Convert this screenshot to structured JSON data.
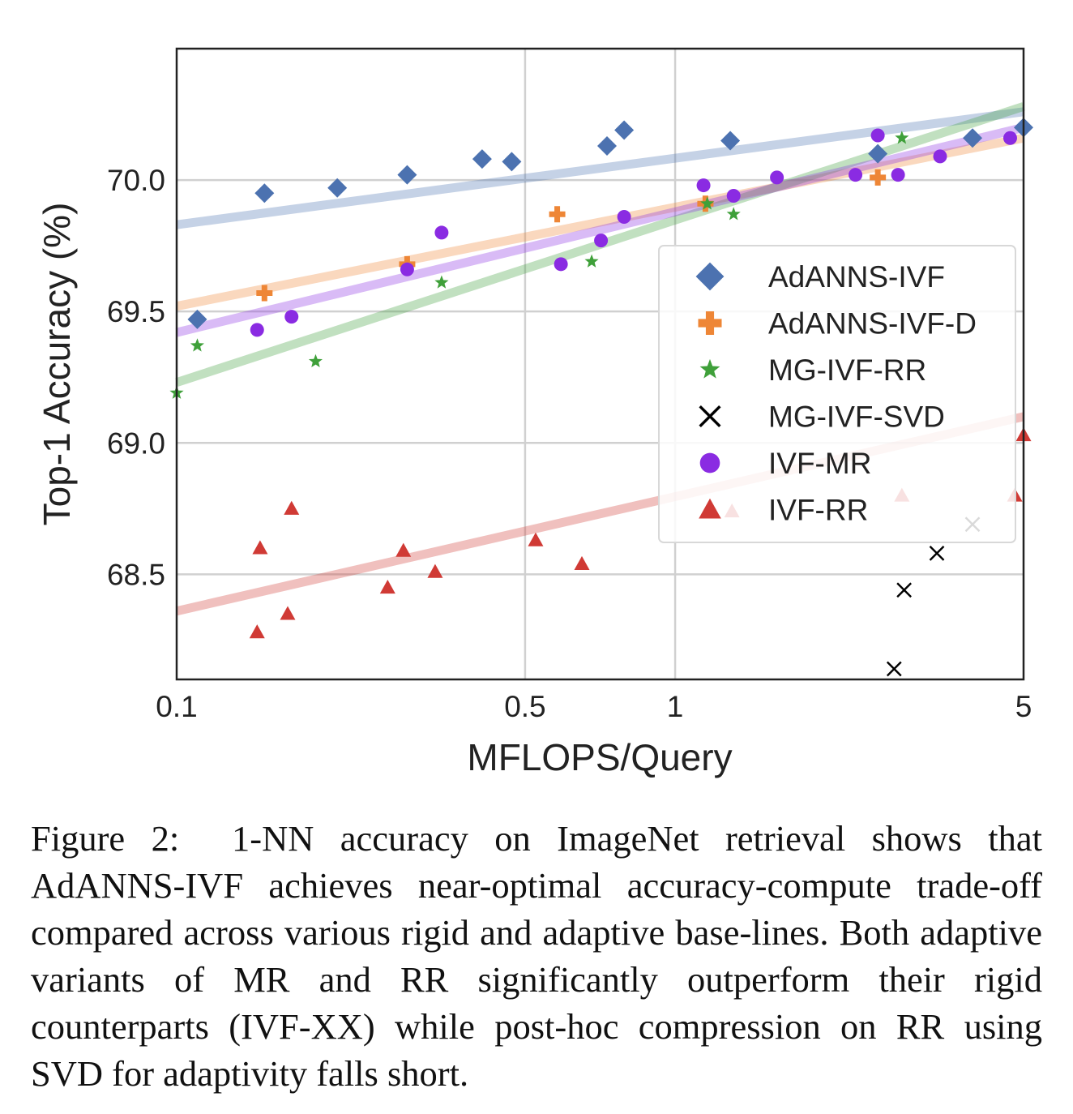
{
  "chart_data": {
    "type": "scatter",
    "xlabel": "MFLOPS/Query",
    "ylabel": "Top-1 Accuracy (%)",
    "xscale": "log",
    "xlim": [
      0.1,
      5
    ],
    "ylim": [
      68.1,
      70.5
    ],
    "xticks": [
      0.1,
      0.5,
      1,
      5
    ],
    "xtick_labels": [
      "0.1",
      "0.5",
      "1",
      "5"
    ],
    "yticks": [
      68.5,
      69.0,
      69.5,
      70.0
    ],
    "ytick_labels": [
      "68.5",
      "69.0",
      "69.5",
      "70.0"
    ],
    "grid": true,
    "legend_position": "center-right",
    "series": [
      {
        "name": "AdANNS-IVF",
        "marker": "diamond",
        "color": "#4c72b0",
        "points": [
          [
            0.11,
            69.47
          ],
          [
            0.15,
            69.95
          ],
          [
            0.21,
            69.97
          ],
          [
            0.29,
            70.02
          ],
          [
            0.41,
            70.08
          ],
          [
            0.47,
            70.07
          ],
          [
            0.73,
            70.13
          ],
          [
            0.79,
            70.19
          ],
          [
            1.29,
            70.15
          ],
          [
            2.55,
            70.1
          ],
          [
            3.95,
            70.16
          ],
          [
            5.0,
            70.2
          ]
        ],
        "trend": [
          [
            0.1,
            69.83
          ],
          [
            5,
            70.26
          ]
        ]
      },
      {
        "name": "AdANNS-IVF-D",
        "marker": "plus",
        "color": "#ee8636",
        "points": [
          [
            0.15,
            69.57
          ],
          [
            0.29,
            69.68
          ],
          [
            0.58,
            69.87
          ],
          [
            1.15,
            69.91
          ],
          [
            2.55,
            70.01
          ]
        ],
        "trend": [
          [
            0.1,
            69.52
          ],
          [
            5,
            70.16
          ]
        ]
      },
      {
        "name": "MG-IVF-RR",
        "marker": "star",
        "color": "#3fa03a",
        "points": [
          [
            0.1,
            69.19
          ],
          [
            0.11,
            69.37
          ],
          [
            0.19,
            69.31
          ],
          [
            0.34,
            69.61
          ],
          [
            0.68,
            69.69
          ],
          [
            1.16,
            69.91
          ],
          [
            1.31,
            69.87
          ],
          [
            2.85,
            70.16
          ]
        ],
        "trend": [
          [
            0.1,
            69.23
          ],
          [
            5,
            70.28
          ]
        ]
      },
      {
        "name": "MG-IVF-SVD",
        "marker": "x",
        "color": "#000000",
        "points": [
          [
            2.75,
            68.14
          ],
          [
            2.88,
            68.44
          ],
          [
            3.35,
            68.58
          ],
          [
            3.95,
            68.69
          ]
        ],
        "trend": []
      },
      {
        "name": "IVF-MR",
        "marker": "circle",
        "color": "#8a2be2",
        "points": [
          [
            0.145,
            69.43
          ],
          [
            0.17,
            69.48
          ],
          [
            0.29,
            69.66
          ],
          [
            0.34,
            69.8
          ],
          [
            0.59,
            69.68
          ],
          [
            0.71,
            69.77
          ],
          [
            0.79,
            69.86
          ],
          [
            1.14,
            69.98
          ],
          [
            1.31,
            69.94
          ],
          [
            1.6,
            70.01
          ],
          [
            2.3,
            70.02
          ],
          [
            2.55,
            70.17
          ],
          [
            2.8,
            70.02
          ],
          [
            3.4,
            70.09
          ],
          [
            4.7,
            70.16
          ]
        ],
        "trend": [
          [
            0.1,
            69.42
          ],
          [
            5,
            70.2
          ]
        ]
      },
      {
        "name": "IVF-RR",
        "marker": "triangle",
        "color": "#d03a35",
        "points": [
          [
            0.145,
            68.28
          ],
          [
            0.147,
            68.6
          ],
          [
            0.167,
            68.35
          ],
          [
            0.17,
            68.75
          ],
          [
            0.265,
            68.45
          ],
          [
            0.285,
            68.59
          ],
          [
            0.33,
            68.51
          ],
          [
            0.525,
            68.63
          ],
          [
            0.65,
            68.54
          ],
          [
            1.3,
            68.74
          ],
          [
            2.85,
            68.8
          ],
          [
            4.8,
            68.8
          ],
          [
            5.0,
            69.03
          ]
        ],
        "trend": [
          [
            0.1,
            68.36
          ],
          [
            5,
            69.1
          ]
        ]
      }
    ]
  },
  "caption": {
    "figure_label": "Figure 2:",
    "text_before_method": "1-NN accuracy on ImageNet retrieval shows that",
    "method_name": "AdANNS-IVF",
    "text_middle": "achieves near-optimal accuracy-compute trade-off compared across various rigid and adaptive base-lines. Both adaptive variants of",
    "mr": "MR",
    "and": "and",
    "rr": "RR",
    "text_after": "significantly outperform their rigid counterparts (IVF-XX) while post-hoc compression on",
    "rr2": "RR",
    "text_end": "using SVD for adaptivity falls short."
  }
}
